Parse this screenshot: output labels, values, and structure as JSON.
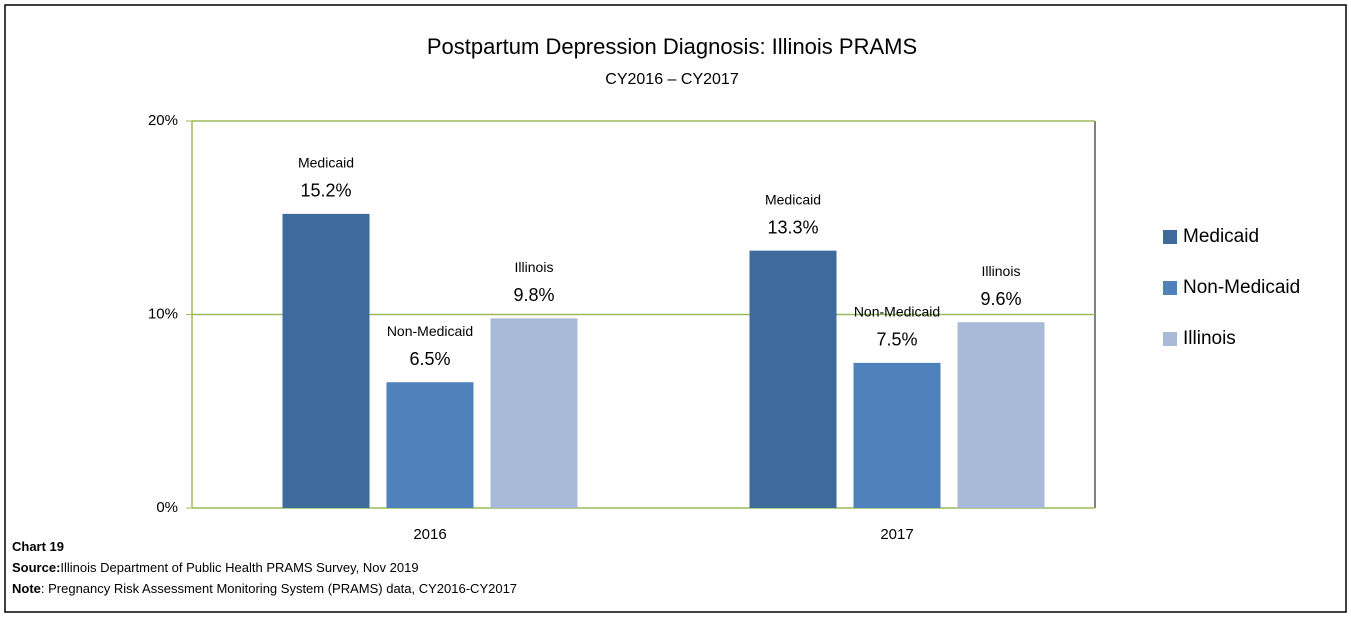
{
  "chart_data": {
    "type": "bar",
    "title": "Postpartum Depression Diagnosis: Illinois PRAMS",
    "subtitle": "CY2016 – CY2017",
    "categories": [
      "2016",
      "2017"
    ],
    "series": [
      {
        "name": "Medicaid",
        "color": "#3e6a9c",
        "values": [
          15.2,
          13.3
        ],
        "value_labels": [
          "15.2%",
          "13.3%"
        ]
      },
      {
        "name": "Non-Medicaid",
        "color": "#4f81bd",
        "values": [
          6.5,
          7.5
        ],
        "value_labels": [
          "6.5%",
          "7.5%"
        ]
      },
      {
        "name": "Illinois",
        "color": "#a9bad9",
        "values": [
          9.8,
          9.6
        ],
        "value_labels": [
          "9.8%",
          "9.6%"
        ]
      }
    ],
    "ylim": [
      0,
      20
    ],
    "yticks": [
      {
        "value": 0,
        "label": "0%"
      },
      {
        "value": 10,
        "label": "10%"
      },
      {
        "value": 20,
        "label": "20%"
      }
    ],
    "grid": true,
    "legend": "right",
    "notes": [
      {
        "label": "Chart 19",
        "text": ""
      },
      {
        "label": "Source:",
        "text": "Illinois Department of Public Health PRAMS Survey, Nov 2019"
      },
      {
        "label": "Note",
        "text": ": Pregnancy Risk Assessment Monitoring System (PRAMS) data, CY2016-CY2017"
      }
    ]
  }
}
